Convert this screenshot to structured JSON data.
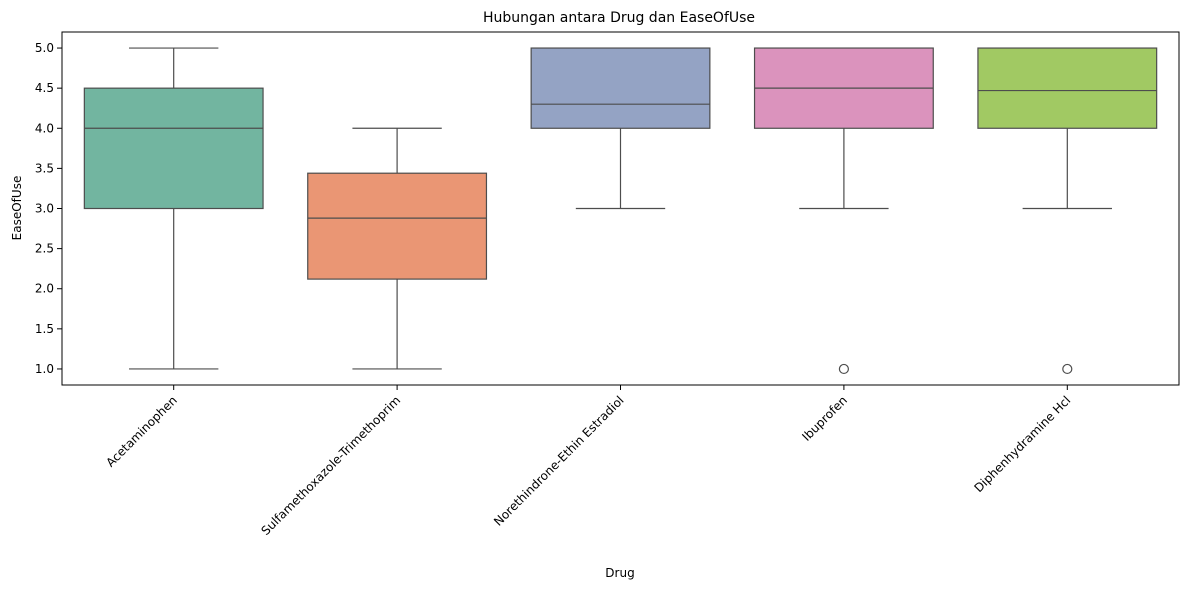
{
  "chart_data": {
    "type": "box",
    "title": "Hubungan antara Drug dan EaseOfUse",
    "xlabel": "Drug",
    "ylabel": "EaseOfUse",
    "ylim": [
      0.8,
      5.2
    ],
    "yticks": [
      "1.0",
      "1.5",
      "2.0",
      "2.5",
      "3.0",
      "3.5",
      "4.0",
      "4.5",
      "5.0"
    ],
    "grid": false,
    "legend": "none",
    "categories": [
      "Acetaminophen",
      "Sulfamethoxazole-Trimethoprim",
      "Norethindrone-Ethin Estradiol",
      "Ibuprofen",
      "Diphenhydramine Hcl"
    ],
    "boxes": [
      {
        "category": "Acetaminophen",
        "whisker_low": 1.0,
        "q1": 3.0,
        "median": 4.0,
        "q3": 4.5,
        "whisker_high": 5.0,
        "outliers": [],
        "color": "#72b5a0"
      },
      {
        "category": "Sulfamethoxazole-Trimethoprim",
        "whisker_low": 1.0,
        "q1": 2.12,
        "median": 2.88,
        "q3": 3.44,
        "whisker_high": 4.0,
        "outliers": [],
        "color": "#ea9674"
      },
      {
        "category": "Norethindrone-Ethin Estradiol",
        "whisker_low": 3.0,
        "q1": 4.0,
        "median": 4.3,
        "q3": 5.0,
        "whisker_high": 5.0,
        "outliers": [],
        "color": "#94a3c4"
      },
      {
        "category": "Ibuprofen",
        "whisker_low": 3.0,
        "q1": 4.0,
        "median": 4.5,
        "q3": 5.0,
        "whisker_high": 5.0,
        "outliers": [
          1.0
        ],
        "color": "#db93bd"
      },
      {
        "category": "Diphenhydramine Hcl",
        "whisker_low": 3.0,
        "q1": 4.0,
        "median": 4.47,
        "q3": 5.0,
        "whisker_high": 5.0,
        "outliers": [
          1.0
        ],
        "color": "#a1c963"
      }
    ]
  }
}
